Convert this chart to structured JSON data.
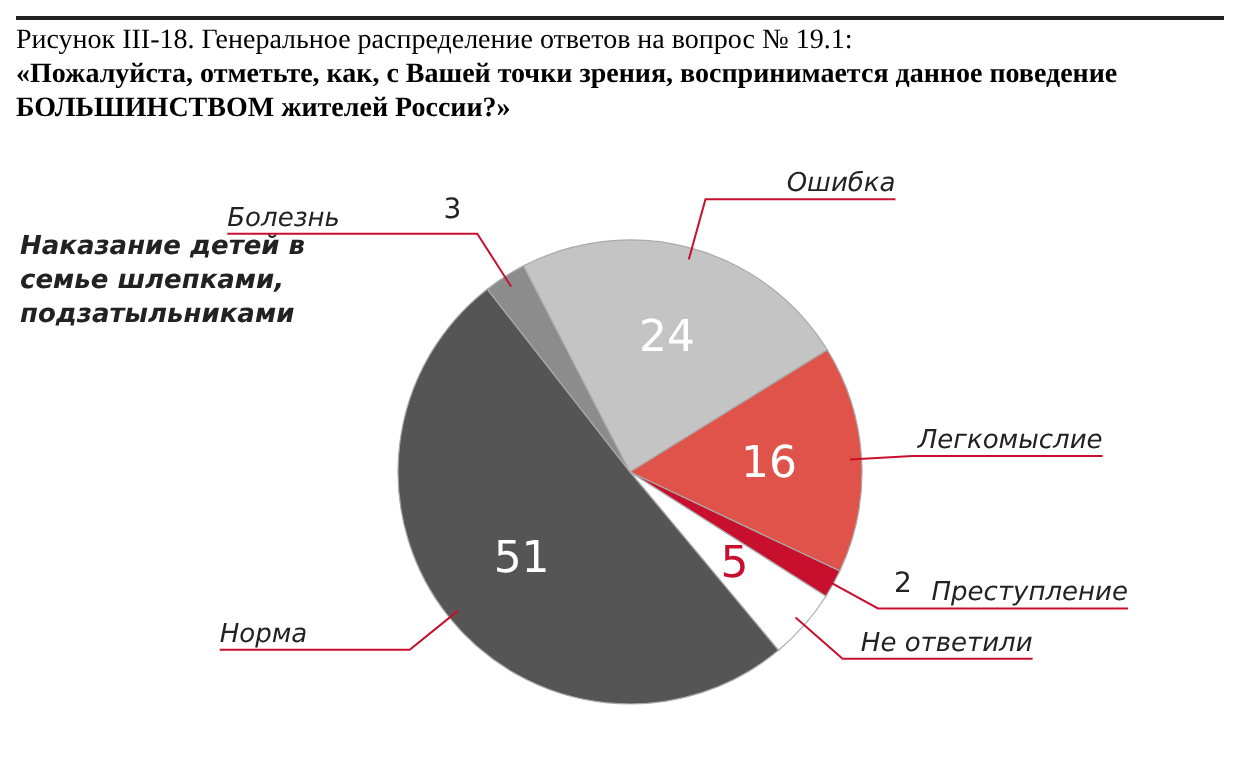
{
  "chart_data": {
    "type": "pie",
    "title": "Рисунок III-18. Генеральное распределение ответов на вопрос № 19.1:",
    "subtitle": "«Пожалуйста, отметьте, как, с Вашей точки зрения, воспринимается данное поведение БОЛЬШИНСТВОМ жителей России?»",
    "annotations": [
      "Наказание детей в семье шлепками, подзатыльниками"
    ],
    "categories": [
      "Болезнь",
      "Ошибка",
      "Легкомыслие",
      "Преступление",
      "Не ответили",
      "Норма"
    ],
    "values": [
      3,
      24,
      16,
      2,
      5,
      51
    ],
    "colors": [
      "#8c8c8c",
      "#c4c4c4",
      "#e0534a",
      "#c8102e",
      "#ffffff",
      "#555555"
    ],
    "data_labels": true,
    "legend": false
  }
}
